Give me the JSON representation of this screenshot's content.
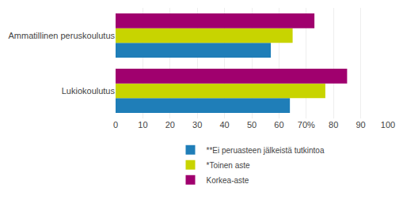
{
  "chart_data": {
    "type": "bar",
    "orientation": "horizontal",
    "categories": [
      "Lukiokoulutus",
      "Ammatillinen peruskoulutus"
    ],
    "series": [
      {
        "name": "**Ei peruasteen jälkeistä tutkintoa",
        "color": "#1f7eb8",
        "values": [
          64,
          57
        ]
      },
      {
        "name": "*Toinen aste",
        "color": "#c8d400",
        "values": [
          77,
          65
        ]
      },
      {
        "name": "Korkea-aste",
        "color": "#a0006e",
        "values": [
          85,
          73
        ]
      }
    ],
    "xlim": [
      0,
      100
    ],
    "xticks": [
      0,
      10,
      20,
      30,
      40,
      50,
      60,
      {
        "value": 70,
        "label": "70%"
      },
      80,
      90,
      100
    ],
    "grid": true,
    "legend": "bottom"
  }
}
